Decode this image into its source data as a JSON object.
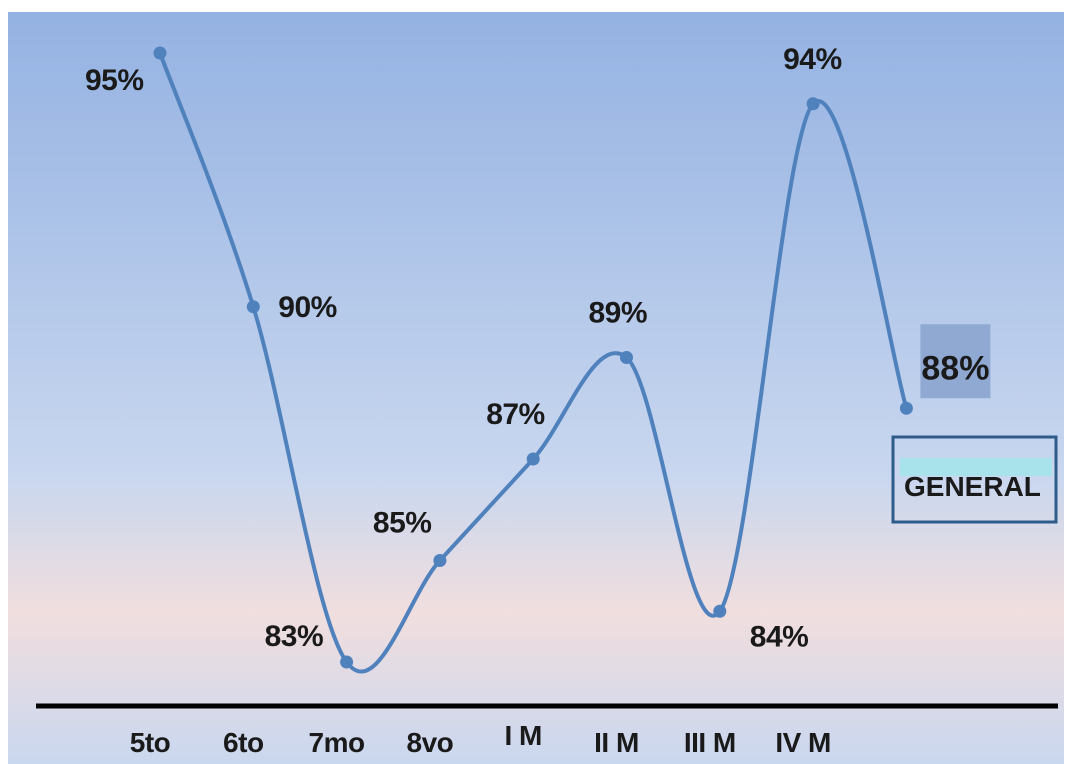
{
  "chart_data": {
    "type": "line",
    "categories": [
      "5to",
      "6to",
      "7mo",
      "8vo",
      "I M",
      "II M",
      "III M",
      "IV M",
      ""
    ],
    "series": [
      {
        "name": "GENERAL",
        "values": [
          95,
          90,
          83,
          85,
          87,
          89,
          84,
          94,
          88
        ],
        "labels": [
          "95%",
          "90%",
          "83%",
          "85%",
          "87%",
          "89%",
          "84%",
          "94%",
          "88%"
        ]
      }
    ],
    "ylim": [
      82.5,
      95.5
    ],
    "grid": false,
    "legend_position": "right",
    "colors": {
      "line": "#4f81bd",
      "background_top": "#94b2e2",
      "background_mid": "#c9d7ef",
      "background_low": "#f1dede",
      "axis": "#000000",
      "legend_border": "#2e5c8a",
      "legend_highlight": "#a8e2ea",
      "value_highlight": "#8fa9d2"
    }
  }
}
